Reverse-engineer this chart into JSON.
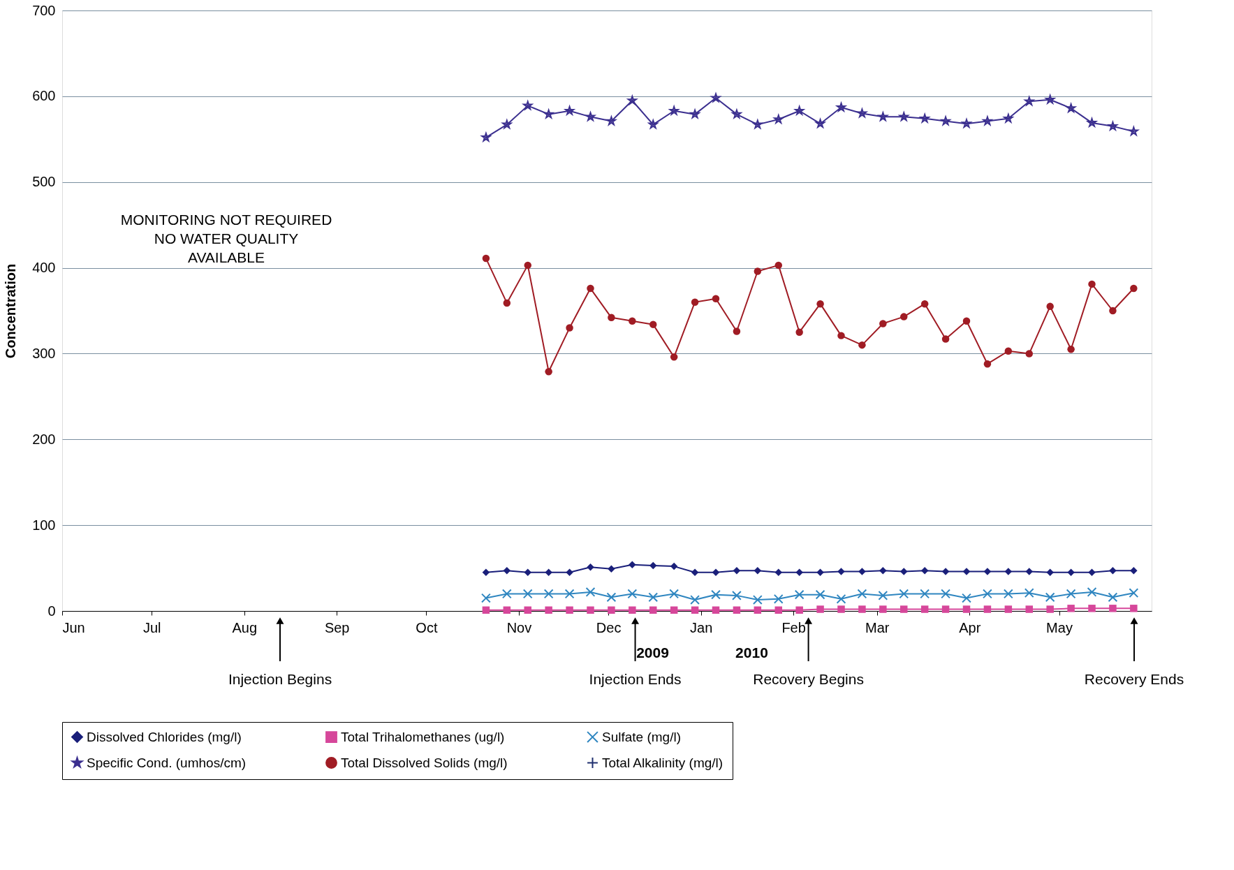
{
  "chart_data": {
    "type": "line",
    "ylabel": "Concentration",
    "x": [
      "2009-10-21",
      "2009-10-28",
      "2009-11-04",
      "2009-11-11",
      "2009-11-18",
      "2009-11-25",
      "2009-12-02",
      "2009-12-09",
      "2009-12-16",
      "2009-12-23",
      "2009-12-30",
      "2010-01-06",
      "2010-01-13",
      "2010-01-20",
      "2010-01-27",
      "2010-02-03",
      "2010-02-10",
      "2010-02-17",
      "2010-02-24",
      "2010-03-03",
      "2010-03-10",
      "2010-03-17",
      "2010-03-24",
      "2010-03-31",
      "2010-04-07",
      "2010-04-14",
      "2010-04-21",
      "2010-04-28",
      "2010-05-05",
      "2010-05-12",
      "2010-05-19",
      "2010-05-26"
    ],
    "series": [
      {
        "name": "Dissolved Chlorides (mg/l)",
        "color": "#1a1f7a",
        "marker": "diamond",
        "values": [
          45,
          47,
          45,
          45,
          45,
          51,
          49,
          54,
          53,
          52,
          45,
          45,
          47,
          47,
          45,
          45,
          45,
          46,
          46,
          47,
          46,
          47,
          46,
          46,
          46,
          46,
          46,
          45,
          45,
          45,
          47,
          47
        ]
      },
      {
        "name": "Total Trihalomethanes (ug/l)",
        "color": "#d6479a",
        "marker": "square",
        "values": [
          1,
          1,
          1,
          1,
          1,
          1,
          1,
          1,
          1,
          1,
          1,
          1,
          1,
          1,
          1,
          1,
          2,
          2,
          2,
          2,
          2,
          2,
          2,
          2,
          2,
          2,
          2,
          2,
          3,
          3,
          3,
          3
        ]
      },
      {
        "name": "Sulfate (mg/l)",
        "color": "#2f86c0",
        "marker": "cross",
        "values": [
          15,
          20,
          20,
          20,
          20,
          22,
          16,
          20,
          16,
          20,
          13,
          19,
          18,
          13,
          14,
          19,
          19,
          14,
          20,
          18,
          20,
          20,
          20,
          15,
          20,
          20,
          21,
          16,
          20,
          22,
          16,
          21
        ]
      },
      {
        "name": "Specific Cond. (umhos/cm)",
        "color": "#3b2f8f",
        "marker": "star",
        "values": [
          552,
          567,
          589,
          579,
          583,
          576,
          571,
          595,
          567,
          583,
          579,
          598,
          579,
          567,
          573,
          583,
          568,
          587,
          580,
          576,
          576,
          574,
          571,
          568,
          571,
          574,
          594,
          596,
          586,
          569,
          565,
          559
        ]
      },
      {
        "name": "Total Dissolved Solids (mg/l)",
        "color": "#a01c24",
        "marker": "circle",
        "values": [
          411,
          359,
          403,
          279,
          330,
          376,
          342,
          338,
          334,
          296,
          360,
          364,
          326,
          396,
          403,
          325,
          358,
          321,
          310,
          335,
          343,
          358,
          317,
          338,
          288,
          303,
          300,
          355,
          305,
          381,
          350,
          376
        ]
      },
      {
        "name": "Total Alkalinity (mg/l)",
        "color": "#1f2f6f",
        "marker": "plus",
        "values": [
          null,
          null,
          null,
          null,
          null,
          null,
          null,
          null,
          null,
          null,
          null,
          null,
          null,
          null,
          null,
          null,
          null,
          null,
          null,
          null,
          null,
          null,
          null,
          null,
          null,
          null,
          null,
          null,
          null,
          null,
          null,
          null
        ]
      }
    ],
    "xlim": [
      "2009-06-01",
      "2010-06-01"
    ],
    "xticks": [
      {
        "value": "2009-06-01",
        "label": "Jun"
      },
      {
        "value": "2009-07-01",
        "label": "Jul"
      },
      {
        "value": "2009-08-01",
        "label": "Aug"
      },
      {
        "value": "2009-09-01",
        "label": "Sep"
      },
      {
        "value": "2009-10-01",
        "label": "Oct"
      },
      {
        "value": "2009-11-01",
        "label": "Nov"
      },
      {
        "value": "2009-12-01",
        "label": "Dec"
      },
      {
        "value": "2010-01-01",
        "label": "Jan"
      },
      {
        "value": "2010-02-01",
        "label": "Feb"
      },
      {
        "value": "2010-03-01",
        "label": "Mar"
      },
      {
        "value": "2010-04-01",
        "label": "Apr"
      },
      {
        "value": "2010-05-01",
        "label": "May"
      }
    ],
    "ylim": [
      0,
      700
    ],
    "yticks": [
      0,
      100,
      200,
      300,
      400,
      500,
      600,
      700
    ],
    "grid": "y",
    "legend": "bottom",
    "line_style": "solid",
    "annotations": [
      "MONITORING NOT REQUIRED\nNO WATER QUALITY\nAVAILABLE",
      "Injection Begins",
      "Injection Ends",
      "Recovery Begins",
      "Recovery Ends",
      "2009",
      "2010"
    ]
  }
}
